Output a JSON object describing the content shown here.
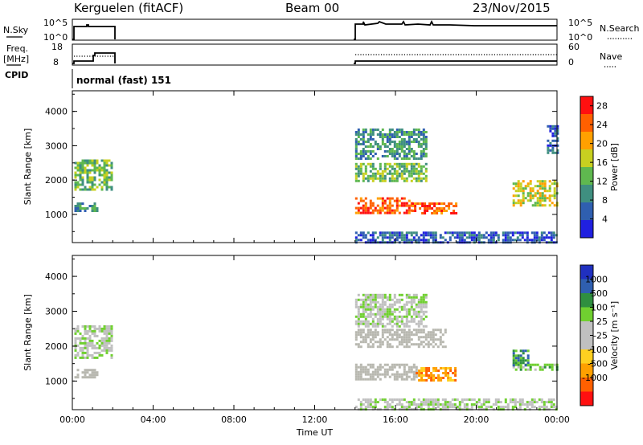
{
  "header": {
    "station": "Kerguelen (fitACF)",
    "beam": "Beam 00",
    "date": "23/Nov/2015"
  },
  "status_panels": {
    "nsky_label": "N.Sky",
    "nsky_ticks": [
      "10^5",
      "10^0"
    ],
    "nsearch_label": "N.Search",
    "nsearch_ticks": [
      "10^5",
      "10^0"
    ],
    "freq_label_1": "Freq.",
    "freq_label_2": "[MHz]",
    "freq_ticks": [
      "18",
      "8"
    ],
    "nave_label": "Nave",
    "nave_ticks": [
      "60",
      "0"
    ],
    "cpid_label": "CPID",
    "cpid_value": "normal (fast) 151"
  },
  "colors": {
    "power": [
      "#2020e0",
      "#2f5fb0",
      "#3f8f80",
      "#5fb84f",
      "#c8d020",
      "#ffa000",
      "#ff6000",
      "#ff1010"
    ],
    "velocity": [
      "#ff1010",
      "#ff6000",
      "#ffa000",
      "#ffd020",
      "#c0c0c0",
      "#c0c0c0",
      "#70d030",
      "#2f8f3f",
      "#2f5fb0",
      "#2030c0"
    ],
    "ground_scatter": "#b8b8b0"
  },
  "chart_data": [
    {
      "type": "heatmap",
      "quantity": "power",
      "ylabel": "Slant Range [km]",
      "xlabel": "",
      "x_ticks": [
        "00:00",
        "04:00",
        "08:00",
        "12:00",
        "16:00",
        "20:00",
        "00:00"
      ],
      "y_ticks": [
        "4000",
        "3000",
        "2000",
        "1000"
      ],
      "xlim_hours": [
        0,
        24
      ],
      "ylim_km": [
        180,
        4600
      ],
      "colorbar": {
        "label": "Power [dB]",
        "ticks": [
          "28",
          "24",
          "20",
          "16",
          "12",
          "8",
          "4"
        ],
        "range": [
          0,
          30
        ]
      },
      "regions": [
        {
          "t": [
            0.1,
            2.0
          ],
          "r": [
            1700,
            2600
          ],
          "level": 14
        },
        {
          "t": [
            0.1,
            1.2
          ],
          "r": [
            1100,
            1350
          ],
          "level": 8
        },
        {
          "t": [
            14.0,
            16.8
          ],
          "r": [
            1050,
            1500
          ],
          "level": 27
        },
        {
          "t": [
            16.8,
            19.0
          ],
          "r": [
            1000,
            1350
          ],
          "level": 26
        },
        {
          "t": [
            14.0,
            17.5
          ],
          "r": [
            1950,
            2500
          ],
          "level": 12
        },
        {
          "t": [
            14.0,
            17.5
          ],
          "r": [
            2600,
            3500
          ],
          "level": 8
        },
        {
          "t": [
            21.8,
            24.0
          ],
          "r": [
            1250,
            2000
          ],
          "level": 18
        },
        {
          "t": [
            14.0,
            24.0
          ],
          "r": [
            200,
            500
          ],
          "level": 6
        },
        {
          "t": [
            23.5,
            24.0
          ],
          "r": [
            2800,
            3600
          ],
          "level": 6
        }
      ]
    },
    {
      "type": "heatmap",
      "quantity": "velocity",
      "ylabel": "Slant Range [km]",
      "xlabel": "Time UT",
      "x_ticks": [
        "00:00",
        "04:00",
        "08:00",
        "12:00",
        "16:00",
        "20:00",
        "00:00"
      ],
      "y_ticks": [
        "4000",
        "3000",
        "2000",
        "1000"
      ],
      "xlim_hours": [
        0,
        24
      ],
      "ylim_km": [
        180,
        4600
      ],
      "colorbar": {
        "label": "Velocity [m s⁻¹]",
        "ticks": [
          "1000",
          "500",
          "100",
          "25",
          "-25",
          "-100",
          "-500",
          "-1000"
        ],
        "range": [
          -1000,
          1000
        ]
      },
      "regions": [
        {
          "t": [
            0.1,
            2.0
          ],
          "r": [
            1700,
            2600
          ],
          "level": 100,
          "ground": false
        },
        {
          "t": [
            0.1,
            1.2
          ],
          "r": [
            1100,
            1350
          ],
          "level": 0,
          "ground": true
        },
        {
          "t": [
            14.0,
            17.0
          ],
          "r": [
            1050,
            1500
          ],
          "level": 0,
          "ground": true
        },
        {
          "t": [
            17.0,
            19.0
          ],
          "r": [
            1000,
            1400
          ],
          "level": -150,
          "ground": false
        },
        {
          "t": [
            14.0,
            18.5
          ],
          "r": [
            1950,
            2500
          ],
          "level": 0,
          "ground": true
        },
        {
          "t": [
            14.0,
            17.5
          ],
          "r": [
            2600,
            3500
          ],
          "level": 50,
          "ground": false
        },
        {
          "t": [
            21.8,
            24.0
          ],
          "r": [
            1300,
            1500
          ],
          "level": 150,
          "ground": false
        },
        {
          "t": [
            21.8,
            22.6
          ],
          "r": [
            1450,
            1900
          ],
          "level": 700,
          "ground": false
        },
        {
          "t": [
            14.0,
            24.0
          ],
          "r": [
            200,
            500
          ],
          "level": 50,
          "ground": false
        }
      ]
    }
  ]
}
